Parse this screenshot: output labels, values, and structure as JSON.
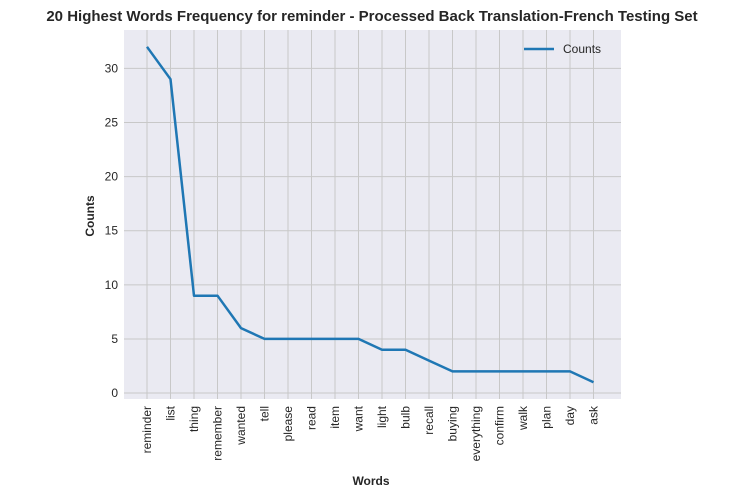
{
  "chart_data": {
    "type": "line",
    "title": "20 Highest Words Frequency for reminder - Processed Back Translation-French Testing Set",
    "xlabel": "Words",
    "ylabel": "Counts",
    "categories": [
      "reminder",
      "list",
      "thing",
      "remember",
      "wanted",
      "tell",
      "please",
      "read",
      "item",
      "want",
      "light",
      "bulb",
      "recall",
      "buying",
      "everything",
      "confirm",
      "walk",
      "plan",
      "day",
      "ask"
    ],
    "series": [
      {
        "name": "Counts",
        "values": [
          32,
          29,
          9,
          9,
          6,
          5,
          5,
          5,
          5,
          5,
          4,
          4,
          3,
          2,
          2,
          2,
          2,
          2,
          2,
          1
        ],
        "color": "#1f77b4"
      }
    ],
    "ylim": [
      -0.55,
      33.55
    ],
    "yticks": [
      0,
      5,
      10,
      15,
      20,
      25,
      30
    ],
    "grid": true,
    "legend_position": "upper-right",
    "background": "#eaeaf2",
    "grid_color": "#c8c8c8"
  }
}
